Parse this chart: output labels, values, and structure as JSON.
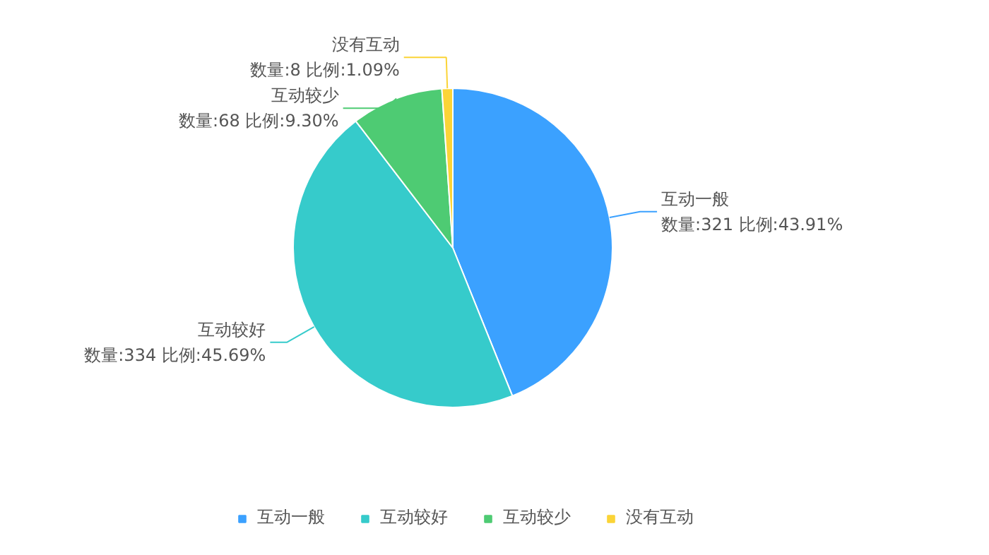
{
  "chart_data": {
    "type": "pie",
    "categories": [
      "互动一般",
      "互动较好",
      "互动较少",
      "没有互动"
    ],
    "values": [
      321,
      334,
      68,
      8
    ],
    "colors": [
      "#3ba1ff",
      "#36cbcb",
      "#4ecb73",
      "#fbd437"
    ],
    "value_labels": [
      "数量:321 比例:43.91%",
      "数量:334 比例:45.69%",
      "数量:68 比例:9.30%",
      "数量:8 比例:1.09%"
    ],
    "legend": "bottom"
  }
}
